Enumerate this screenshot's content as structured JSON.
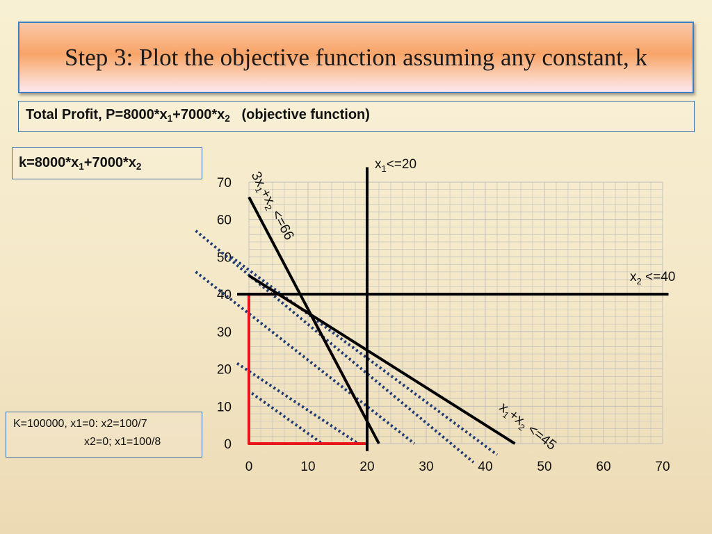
{
  "title": "Step 3: Plot the objective function assuming any constant, k",
  "objective": {
    "prefix": "Total Profit, P=8000*x",
    "sub1": "1",
    "mid": "+7000*x",
    "sub2": "2",
    "suffix": "(objective function)"
  },
  "k_formula": {
    "prefix": "k=8000*x",
    "sub1": "1",
    "mid": "+7000*x",
    "sub2": "2"
  },
  "note": {
    "line1": "K=100000, x1=0: x2=100/7",
    "line2": "x2=0; x1=100/8"
  },
  "chart_data": {
    "type": "line",
    "x_ticks": [
      "0",
      "10",
      "20",
      "30",
      "40",
      "50",
      "60",
      "70"
    ],
    "y_ticks": [
      "0",
      "10",
      "20",
      "30",
      "40",
      "50",
      "60",
      "70"
    ],
    "xlim": [
      0,
      70
    ],
    "ylim": [
      0,
      70
    ],
    "grid": true,
    "constraints": [
      {
        "id": "x1-le-20",
        "label_main": "x",
        "label_sub": "1",
        "label_rest": "<=20",
        "points": [
          [
            20,
            -2
          ],
          [
            20,
            74
          ]
        ]
      },
      {
        "id": "x2-le-40",
        "label_main": "x",
        "label_sub": "2",
        "label_rest": " <=40",
        "points": [
          [
            -2,
            40
          ],
          [
            71,
            40
          ]
        ]
      },
      {
        "id": "3x1-x2-le-66",
        "label_a": "3x",
        "label_sub1": "1",
        "label_b": "+x",
        "label_sub2": "2",
        "label_c": " <=66",
        "points": [
          [
            0,
            66
          ],
          [
            22,
            0
          ]
        ]
      },
      {
        "id": "x1-x2-le-45",
        "label_a": "x",
        "label_sub1": "1",
        "label_b": "+x",
        "label_sub2": "2",
        "label_c": " <=45",
        "points": [
          [
            0,
            45
          ],
          [
            45,
            0
          ]
        ]
      }
    ],
    "feasible_region": [
      [
        0,
        0
      ],
      [
        0,
        40
      ],
      [
        5,
        40
      ],
      [
        10.5,
        34.5
      ],
      [
        20,
        6
      ],
      [
        20,
        0
      ]
    ],
    "objective_lines": [
      {
        "points": [
          [
            0.5,
            13.5
          ],
          [
            12.4,
            0
          ]
        ]
      },
      {
        "points": [
          [
            -2,
            21.5
          ],
          [
            18.5,
            0
          ]
        ]
      },
      {
        "points": [
          [
            -9,
            46
          ],
          [
            28,
            0
          ]
        ]
      },
      {
        "points": [
          [
            -3,
            50
          ],
          [
            42,
            -3
          ]
        ]
      },
      {
        "points": [
          [
            -9,
            57
          ],
          [
            38,
            -5
          ]
        ]
      }
    ],
    "colors": {
      "constraint": "#000000",
      "feasible": "#e8161b",
      "objective": "#1f3b73",
      "grid": "#bdbdbd"
    }
  }
}
